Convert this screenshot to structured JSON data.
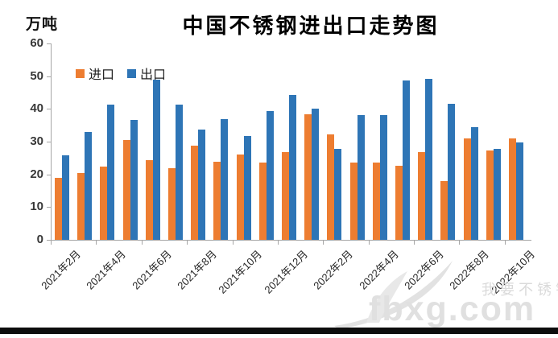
{
  "chart": {
    "title": "中国不锈钢进出口走势图",
    "unit_label": "万吨"
  },
  "chart_data": {
    "type": "bar",
    "title": "中国不锈钢进出口走势图",
    "ylabel": "万吨",
    "ylim": [
      0,
      60
    ],
    "y_ticks": [
      0,
      10,
      20,
      30,
      40,
      50,
      60
    ],
    "grid": false,
    "legend_position": "top-left-inside",
    "x_label_interval": 2,
    "categories": [
      "2021年2月",
      "2021年3月",
      "2021年4月",
      "2021年5月",
      "2021年6月",
      "2021年7月",
      "2021年8月",
      "2021年9月",
      "2021年10月",
      "2021年11月",
      "2021年12月",
      "2022年1月",
      "2022年2月",
      "2022年3月",
      "2022年4月",
      "2022年5月",
      "2022年6月",
      "2022年7月",
      "2022年8月",
      "2022年9月",
      "2022年10月"
    ],
    "x_tick_labels": [
      "2021年2月",
      "2021年4月",
      "2021年6月",
      "2021年8月",
      "2021年10月",
      "2021年12月",
      "2022年2月",
      "2022年4月",
      "2022年6月",
      "2022年8月",
      "2022年10月"
    ],
    "series": [
      {
        "name": "进口",
        "color": "#ED7D31",
        "values": [
          18.9,
          20.3,
          22.4,
          30.4,
          24.4,
          21.9,
          28.7,
          23.9,
          26.1,
          23.7,
          26.8,
          38.3,
          32.1,
          23.5,
          23.6,
          22.7,
          26.8,
          18.0,
          31.0,
          27.2,
          31.0
        ]
      },
      {
        "name": "出口",
        "color": "#2E75B6",
        "values": [
          25.9,
          32.9,
          41.2,
          36.7,
          48.9,
          41.2,
          33.8,
          37.0,
          31.7,
          39.4,
          44.2,
          40.1,
          27.9,
          38.0,
          38.0,
          48.8,
          49.2,
          41.5,
          34.5,
          27.9,
          29.7
        ]
      }
    ]
  },
  "watermark": {
    "brand": "fbxg.com",
    "slogan": "我要不锈钢"
  }
}
